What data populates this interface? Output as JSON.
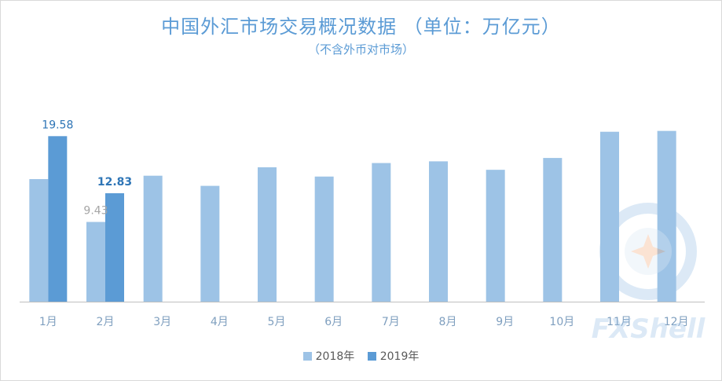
{
  "chart_data": {
    "type": "bar",
    "title": "中国外汇市场交易概况数据 （单位：万亿元）",
    "subtitle": "（不含外币对市场）",
    "categories": [
      "1月",
      "2月",
      "3月",
      "4月",
      "5月",
      "6月",
      "7月",
      "8月",
      "9月",
      "10月",
      "11月",
      "12月"
    ],
    "series": [
      {
        "name": "2018年",
        "color": "#9dc3e6",
        "values": [
          14.5,
          9.43,
          14.9,
          13.7,
          15.9,
          14.8,
          16.4,
          16.6,
          15.6,
          17.0,
          20.1,
          20.2
        ],
        "labels": [
          "",
          "9.43",
          "",
          "",
          "",
          "",
          "",
          "",
          "",
          "",
          "",
          ""
        ]
      },
      {
        "name": "2019年",
        "color": "#5b9bd5",
        "values": [
          19.58,
          12.83,
          null,
          null,
          null,
          null,
          null,
          null,
          null,
          null,
          null,
          null
        ],
        "labels": [
          "19.58",
          "12.83",
          "",
          "",
          "",
          "",
          "",
          "",
          "",
          "",
          "",
          ""
        ]
      }
    ],
    "ylim": [
      0,
      25
    ],
    "xlabel": "",
    "ylabel": "",
    "grid": false,
    "legend_position": "bottom"
  },
  "watermark": {
    "text": "FXShell"
  }
}
